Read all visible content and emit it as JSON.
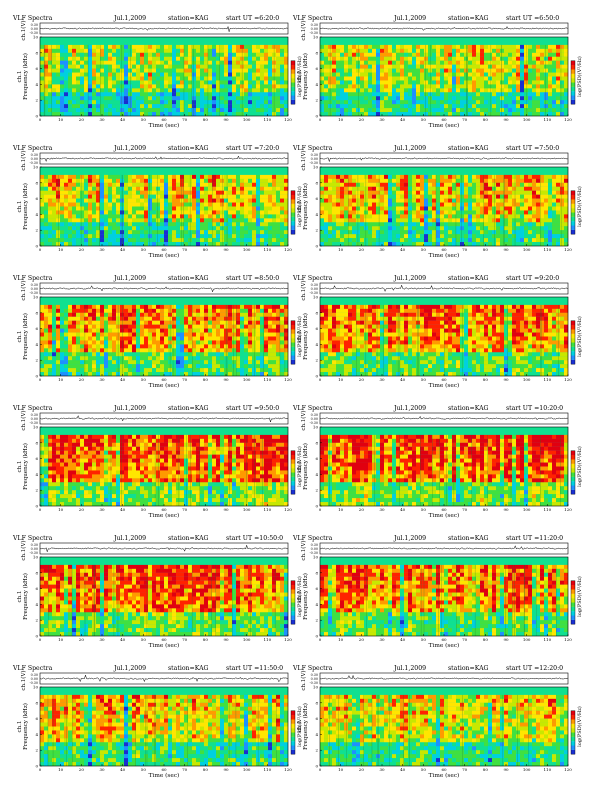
{
  "chart_data": [
    {
      "type": "heatmap",
      "title": "VLF Spectra",
      "date": "Jul.1,2009",
      "station": "station=KAG",
      "start": "start UT =6:20:0",
      "xlabel": "Time (sec)",
      "ylabel_top": "ch.1(V)",
      "ylabel_bottom": "Frequency (kHz)",
      "ylabel_ch": "ch.1",
      "colorbar_label": "log(PSD)(V²/Hz)",
      "xlim": [
        0,
        120
      ],
      "ylim": [
        0,
        10
      ],
      "x_ticks": [
        0,
        10,
        20,
        30,
        40,
        50,
        60,
        70,
        80,
        90,
        100,
        110,
        120
      ],
      "y_ticks": [
        0,
        2,
        4,
        6,
        8,
        10
      ],
      "wave_ticks": [
        "0.30",
        "0.00",
        "-0.30"
      ],
      "intensity": 0.3
    },
    {
      "type": "heatmap",
      "title": "VLF Spectra",
      "date": "Jul.1,2009",
      "station": "station=KAG",
      "start": "start UT =6:50:0",
      "xlabel": "Time (sec)",
      "ylabel_top": "ch.1(V)",
      "ylabel_bottom": "Frequency (kHz)",
      "ylabel_ch": "ch.1",
      "colorbar_label": "log(PSD)(V²/Hz)",
      "xlim": [
        0,
        120
      ],
      "ylim": [
        0,
        10
      ],
      "x_ticks": [
        0,
        10,
        20,
        30,
        40,
        50,
        60,
        70,
        80,
        90,
        100,
        110,
        120
      ],
      "y_ticks": [
        0,
        2,
        4,
        6,
        8,
        10
      ],
      "wave_ticks": [
        "0.30",
        "0.00",
        "-0.30"
      ],
      "intensity": 0.32
    },
    {
      "type": "heatmap",
      "title": "VLF Spectra",
      "date": "Jul.1,2009",
      "station": "station=KAG",
      "start": "start UT =7:20:0",
      "xlabel": "Time (sec)",
      "ylabel_top": "ch.1(V)",
      "ylabel_bottom": "Frequency (kHz)",
      "ylabel_ch": "ch.1",
      "colorbar_label": "log(PSD)(V²/Hz)",
      "xlim": [
        0,
        120
      ],
      "ylim": [
        0,
        10
      ],
      "x_ticks": [
        0,
        10,
        20,
        30,
        40,
        50,
        60,
        70,
        80,
        90,
        100,
        110,
        120
      ],
      "y_ticks": [
        0,
        2,
        4,
        6,
        8,
        10
      ],
      "wave_ticks": [
        "0.30",
        "0.00",
        "-0.30"
      ],
      "intensity": 0.4
    },
    {
      "type": "heatmap",
      "title": "VLF Spectra",
      "date": "Jul.1,2009",
      "station": "station=KAG",
      "start": "start UT =7:50:0",
      "xlabel": "Time (sec)",
      "ylabel_top": "ch.1(V)",
      "ylabel_bottom": "Frequency (kHz)",
      "ylabel_ch": "ch.1",
      "colorbar_label": "log(PSD)(V²/Hz)",
      "xlim": [
        0,
        120
      ],
      "ylim": [
        0,
        10
      ],
      "x_ticks": [
        0,
        10,
        20,
        30,
        40,
        50,
        60,
        70,
        80,
        90,
        100,
        110,
        120
      ],
      "y_ticks": [
        0,
        2,
        4,
        6,
        8,
        10
      ],
      "wave_ticks": [
        "0.30",
        "0.00",
        "-0.30"
      ],
      "intensity": 0.42
    },
    {
      "type": "heatmap",
      "title": "VLF Spectra",
      "date": "Jul.1,2009",
      "station": "station=KAG",
      "start": "start UT =8:50:0",
      "xlabel": "Time (sec)",
      "ylabel_top": "ch.1(V)",
      "ylabel_bottom": "Frequency (kHz)",
      "ylabel_ch": "ch.1",
      "colorbar_label": "log(PSD)(V²/Hz)",
      "xlim": [
        0,
        120
      ],
      "ylim": [
        0,
        10
      ],
      "x_ticks": [
        0,
        10,
        20,
        30,
        40,
        50,
        60,
        70,
        80,
        90,
        100,
        110,
        120
      ],
      "y_ticks": [
        0,
        2,
        4,
        6,
        8,
        10
      ],
      "wave_ticks": [
        "0.30",
        "0.00",
        "-0.30"
      ],
      "intensity": 0.55
    },
    {
      "type": "heatmap",
      "title": "VLF Spectra",
      "date": "Jul.1,2009",
      "station": "station=KAG",
      "start": "start UT =9:20:0",
      "xlabel": "Time (sec)",
      "ylabel_top": "ch.1(V)",
      "ylabel_bottom": "Frequency (kHz)",
      "ylabel_ch": "ch.1",
      "colorbar_label": "log(PSD)(V²/Hz)",
      "xlim": [
        0,
        120
      ],
      "ylim": [
        0,
        10
      ],
      "x_ticks": [
        0,
        10,
        20,
        30,
        40,
        50,
        60,
        70,
        80,
        90,
        100,
        110,
        120
      ],
      "y_ticks": [
        0,
        2,
        4,
        6,
        8,
        10
      ],
      "wave_ticks": [
        "0.30",
        "0.00",
        "-0.30"
      ],
      "intensity": 0.58
    },
    {
      "type": "heatmap",
      "title": "VLF Spectra",
      "date": "Jul.1,2009",
      "station": "station=KAG",
      "start": "start UT =9:50:0",
      "xlabel": "Time (sec)",
      "ylabel_top": "ch.1(V)",
      "ylabel_bottom": "Frequency (kHz)",
      "ylabel_ch": "ch.1",
      "colorbar_label": "log(PSD)(V²/Hz)",
      "xlim": [
        0,
        120
      ],
      "ylim": [
        0,
        10
      ],
      "x_ticks": [
        0,
        10,
        20,
        30,
        40,
        50,
        60,
        70,
        80,
        90,
        100,
        110,
        120
      ],
      "y_ticks": [
        0,
        2,
        4,
        6,
        8,
        10
      ],
      "wave_ticks": [
        "0.30",
        "0.00",
        "-0.30"
      ],
      "intensity": 0.7
    },
    {
      "type": "heatmap",
      "title": "VLF Spectra",
      "date": "Jul.1,2009",
      "station": "station=KAG",
      "start": "start UT =10:20:0",
      "xlabel": "Time (sec)",
      "ylabel_top": "ch.1(V)",
      "ylabel_bottom": "Frequency (kHz)",
      "ylabel_ch": "ch.1",
      "colorbar_label": "log(PSD)(V²/Hz)",
      "xlim": [
        0,
        120
      ],
      "ylim": [
        0,
        10
      ],
      "x_ticks": [
        0,
        10,
        20,
        30,
        40,
        50,
        60,
        70,
        80,
        90,
        100,
        110,
        120
      ],
      "y_ticks": [
        0,
        2,
        4,
        6,
        8,
        10
      ],
      "wave_ticks": [
        "0.30",
        "0.00",
        "-0.30"
      ],
      "intensity": 0.7
    },
    {
      "type": "heatmap",
      "title": "VLF Spectra",
      "date": "Jul.1,2009",
      "station": "station=KAG",
      "start": "start UT =10:50:0",
      "xlabel": "Time (sec)",
      "ylabel_top": "ch.1(V)",
      "ylabel_bottom": "Frequency (kHz)",
      "ylabel_ch": "ch.1",
      "colorbar_label": "log(PSD)(V²/Hz)",
      "xlim": [
        0,
        120
      ],
      "ylim": [
        0,
        10
      ],
      "x_ticks": [
        0,
        10,
        20,
        30,
        40,
        50,
        60,
        70,
        80,
        90,
        100,
        110,
        120
      ],
      "y_ticks": [
        0,
        2,
        4,
        6,
        8,
        10
      ],
      "wave_ticks": [
        "0.30",
        "0.00",
        "-0.30"
      ],
      "intensity": 0.62
    },
    {
      "type": "heatmap",
      "title": "VLF Spectra",
      "date": "Jul.1,2009",
      "station": "station=KAG",
      "start": "start UT =11:20:0",
      "xlabel": "Time (sec)",
      "ylabel_top": "ch.1(V)",
      "ylabel_bottom": "Frequency (kHz)",
      "ylabel_ch": "ch.1",
      "colorbar_label": "log(PSD)(V²/Hz)",
      "xlim": [
        0,
        120
      ],
      "ylim": [
        0,
        10
      ],
      "x_ticks": [
        0,
        10,
        20,
        30,
        40,
        50,
        60,
        70,
        80,
        90,
        100,
        110,
        120
      ],
      "y_ticks": [
        0,
        2,
        4,
        6,
        8,
        10
      ],
      "wave_ticks": [
        "0.30",
        "0.00",
        "-0.30"
      ],
      "intensity": 0.6
    },
    {
      "type": "heatmap",
      "title": "VLF Spectra",
      "date": "Jul.1,2009",
      "station": "station=KAG",
      "start": "start UT =11:50:0",
      "xlabel": "Time (sec)",
      "ylabel_top": "ch.1(V)",
      "ylabel_bottom": "Frequency (kHz)",
      "ylabel_ch": "ch.1",
      "colorbar_label": "log(PSD)(V²/Hz)",
      "xlim": [
        0,
        120
      ],
      "ylim": [
        0,
        10
      ],
      "x_ticks": [
        0,
        10,
        20,
        30,
        40,
        50,
        60,
        70,
        80,
        90,
        100,
        110,
        120
      ],
      "y_ticks": [
        0,
        2,
        4,
        6,
        8,
        10
      ],
      "wave_ticks": [
        "0.30",
        "0.00",
        "-0.30"
      ],
      "intensity": 0.45
    },
    {
      "type": "heatmap",
      "title": "VLF Spectra",
      "date": "Jul.1,2009",
      "station": "station=KAG",
      "start": "start UT =12:20:0",
      "xlabel": "Time (sec)",
      "ylabel_top": "ch.1(V)",
      "ylabel_bottom": "Frequency (kHz)",
      "ylabel_ch": "ch.1",
      "colorbar_label": "log(PSD)(V²/Hz)",
      "xlim": [
        0,
        120
      ],
      "ylim": [
        0,
        10
      ],
      "x_ticks": [
        0,
        10,
        20,
        30,
        40,
        50,
        60,
        70,
        80,
        90,
        100,
        110,
        120
      ],
      "y_ticks": [
        0,
        2,
        4,
        6,
        8,
        10
      ],
      "wave_ticks": [
        "0.30",
        "0.00",
        "-0.30"
      ],
      "intensity": 0.4
    }
  ],
  "colors": {
    "spectrum": [
      "#1a2fd0",
      "#1e90ff",
      "#00d0e0",
      "#10e090",
      "#40e040",
      "#c8e800",
      "#ffe600",
      "#ff9a00",
      "#ff2200",
      "#e00010"
    ],
    "band_top": "#30d8c0",
    "axis": "#000000"
  }
}
